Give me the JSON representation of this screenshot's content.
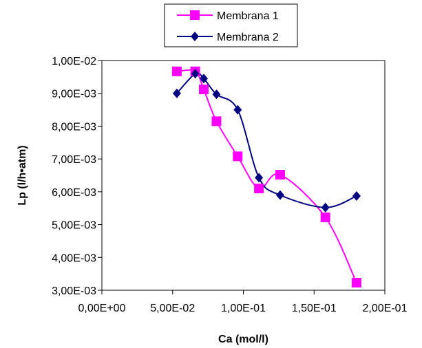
{
  "chart_data": {
    "type": "line",
    "title": "",
    "xlabel": "Ca (mol/l)",
    "ylabel": "Lp (l/h•atm)",
    "xlim": [
      0,
      0.2
    ],
    "ylim": [
      0.003,
      0.01
    ],
    "x_ticks": [
      0,
      0.05,
      0.1,
      0.15,
      0.2
    ],
    "x_tick_labels": [
      "0,00E+00",
      "5,00E-02",
      "1,00E-01",
      "1,50E-01",
      "2,00E-01"
    ],
    "y_ticks": [
      0.003,
      0.004,
      0.005,
      0.006,
      0.007,
      0.008,
      0.009,
      0.01
    ],
    "y_tick_labels": [
      "3,00E-03",
      "4,00E-03",
      "5,00E-03",
      "6,00E-03",
      "7,00E-03",
      "8,00E-03",
      "9,00E-03",
      "1,00E-02"
    ],
    "grid": false,
    "legend_position": "top-right",
    "series": [
      {
        "name": "Membrana 1",
        "color": "#ff00ff",
        "marker": "square",
        "x": [
          0.053,
          0.066,
          0.072,
          0.081,
          0.096,
          0.111,
          0.126,
          0.158,
          0.18
        ],
        "y": [
          0.00967,
          0.00967,
          0.00912,
          0.00815,
          0.00708,
          0.0061,
          0.00652,
          0.00522,
          0.00323
        ]
      },
      {
        "name": "Membrana 2",
        "color": "#000080",
        "marker": "diamond",
        "x": [
          0.053,
          0.066,
          0.072,
          0.081,
          0.096,
          0.111,
          0.126,
          0.158,
          0.18
        ],
        "y": [
          0.009,
          0.0096,
          0.00945,
          0.00897,
          0.0085,
          0.00643,
          0.0059,
          0.00552,
          0.00587
        ]
      }
    ]
  }
}
